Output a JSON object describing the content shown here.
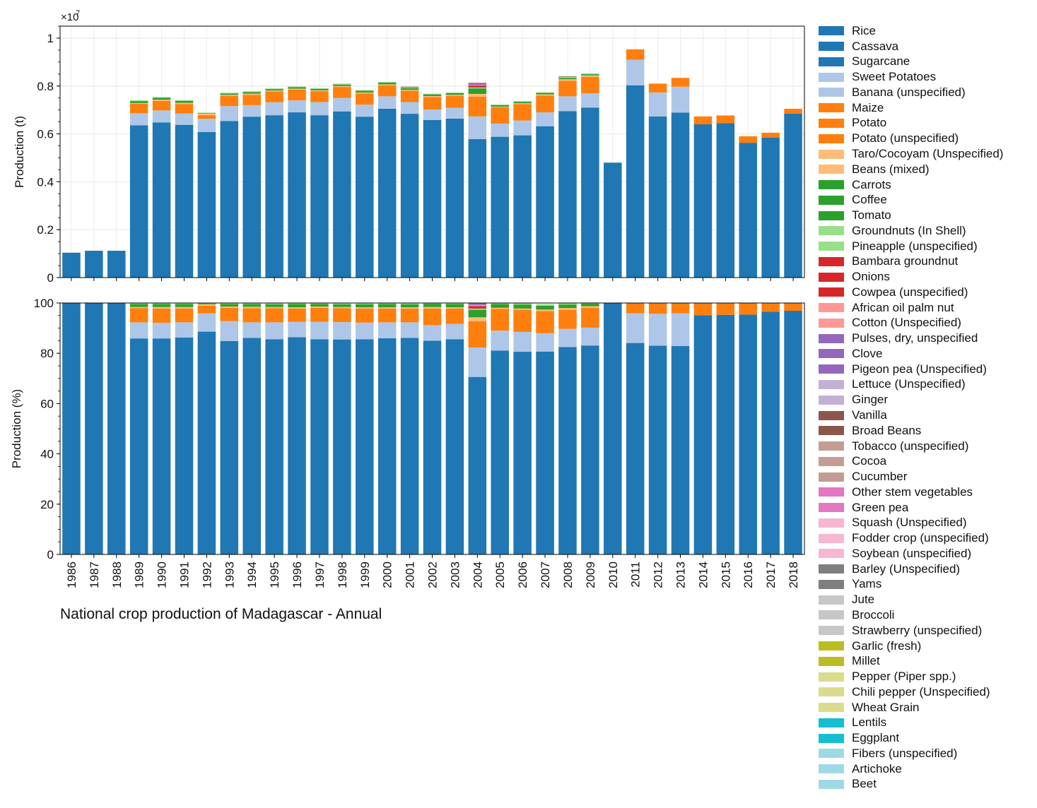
{
  "figure_title": "National crop production of Madagascar - Annual",
  "colors": {
    "Rice": "#1f77b4",
    "Cassava": "#1f77b4",
    "Sugarcane": "#1f77b4",
    "Sweet Potatoes": "#aec7e8",
    "Banana (unspecified)": "#aec7e8",
    "Maize": "#ff7f0e",
    "Potato": "#ff7f0e",
    "Potato (unspecified)": "#ff7f0e",
    "Taro/Cocoyam (Unspecified)": "#ffbb78",
    "Beans (mixed)": "#ffbb78",
    "Carrots": "#2ca02c",
    "Coffee": "#2ca02c",
    "Tomato": "#2ca02c",
    "Groundnuts (In Shell)": "#98df8a",
    "Pineapple (unspecified)": "#98df8a",
    "Bambara groundnut": "#d62728",
    "Onions": "#d62728",
    "Cowpea (unspecified)": "#d62728",
    "African oil palm nut": "#ff9896",
    "Cotton (Unspecified)": "#ff9896",
    "Pulses, dry, unspecified": "#9467bd",
    "Clove": "#9467bd",
    "Pigeon pea (Unspecified)": "#9467bd",
    "Lettuce (Unspecified)": "#c5b0d5",
    "Ginger": "#c5b0d5",
    "Vanilla": "#8c564b",
    "Broad Beans": "#8c564b",
    "Tobacco (unspecified)": "#c49c94",
    "Cocoa": "#c49c94",
    "Cucumber": "#c49c94",
    "Other stem vegetables": "#e377c2",
    "Green pea": "#e377c2",
    "Squash (Unspecified)": "#f7b6d2",
    "Fodder crop (unspecified)": "#f7b6d2",
    "Soybean (unspecified)": "#f7b6d2",
    "Barley (Unspecified)": "#7f7f7f",
    "Yams": "#7f7f7f",
    "Jute": "#c7c7c7",
    "Broccoli": "#c7c7c7",
    "Strawberry (unspecified)": "#c7c7c7",
    "Garlic (fresh)": "#bcbd22",
    "Millet": "#bcbd22",
    "Pepper (Piper spp.)": "#dbdb8d",
    "Chili pepper (Unspecified)": "#dbdb8d",
    "Wheat Grain": "#dbdb8d",
    "Lentils": "#17becf",
    "Eggplant": "#17becf",
    "Fibers (unspecified)": "#9edae5",
    "Artichoke": "#9edae5",
    "Beet": "#9edae5"
  },
  "chart_data": [
    {
      "type": "bar",
      "stacked": true,
      "panel": "top",
      "title": "",
      "xlabel": "",
      "ylabel": "Production (t)",
      "y_multiplier_label": "×10",
      "y_multiplier_exponent": "7",
      "ylim": [
        0,
        1.05
      ],
      "yticks": [
        0,
        0.2,
        0.4,
        0.6,
        0.8,
        1
      ],
      "ytick_labels": [
        "0",
        "0.2",
        "0.4",
        "0.6",
        "0.8",
        "1"
      ],
      "grid": true,
      "categories": [
        "1986",
        "1987",
        "1988",
        "1989",
        "1990",
        "1991",
        "1992",
        "1993",
        "1994",
        "1995",
        "1996",
        "1997",
        "1998",
        "1999",
        "2000",
        "2001",
        "2002",
        "2003",
        "2004",
        "2005",
        "2006",
        "2007",
        "2008",
        "2009",
        "2010",
        "2011",
        "2012",
        "2013",
        "2014",
        "2015",
        "2016",
        "2017",
        "2018"
      ],
      "series": [
        {
          "name": "Rice",
          "values": [
            0.104,
            0.112,
            0.112,
            0.636,
            0.648,
            0.638,
            0.608,
            0.654,
            0.672,
            0.678,
            0.69,
            0.678,
            0.694,
            0.672,
            0.705,
            0.684,
            0.658,
            0.664,
            0.578,
            0.588,
            0.594,
            0.632,
            0.695,
            0.71,
            0.48,
            0.803,
            0.673,
            0.689,
            0.64,
            0.645,
            0.563,
            0.585,
            0.685
          ]
        },
        {
          "name": "Sweet Potatoes",
          "values": [
            0,
            0,
            0,
            0.05,
            0.05,
            0.047,
            0.055,
            0.062,
            0.048,
            0.054,
            0.05,
            0.055,
            0.056,
            0.05,
            0.052,
            0.049,
            0.044,
            0.045,
            0.095,
            0.055,
            0.062,
            0.058,
            0.062,
            0.06,
            0,
            0.107,
            0.1,
            0.108,
            0,
            0,
            0,
            0,
            0
          ]
        },
        {
          "name": "Maize",
          "values": [
            0,
            0,
            0,
            0.04,
            0.04,
            0.04,
            0.015,
            0.043,
            0.043,
            0.045,
            0.045,
            0.045,
            0.046,
            0.047,
            0.046,
            0.047,
            0.052,
            0.05,
            0.082,
            0.068,
            0.068,
            0.07,
            0.065,
            0.068,
            0,
            0.043,
            0.037,
            0.037,
            0.033,
            0.032,
            0.027,
            0.02,
            0.02
          ]
        },
        {
          "name": "Taro/Cocoyam (Unspecified)",
          "values": [
            0,
            0,
            0,
            0.003,
            0.005,
            0.005,
            0.007,
            0.004,
            0.005,
            0.004,
            0.004,
            0.004,
            0.004,
            0.004,
            0.004,
            0.004,
            0.004,
            0.004,
            0.012,
            0.003,
            0.004,
            0.005,
            0.006,
            0.006,
            0,
            0,
            0,
            0,
            0,
            0,
            0,
            0,
            0
          ]
        },
        {
          "name": "Carrots",
          "values": [
            0,
            0,
            0,
            0.008,
            0.008,
            0.008,
            0.002,
            0.006,
            0.007,
            0.006,
            0.006,
            0.006,
            0.006,
            0.007,
            0.007,
            0.007,
            0.007,
            0.007,
            0.023,
            0.006,
            0.006,
            0.006,
            0.006,
            0.005,
            0,
            0,
            0,
            0,
            0,
            0,
            0,
            0,
            0
          ]
        },
        {
          "name": "Groundnuts (In Shell)",
          "values": [
            0,
            0,
            0,
            0.003,
            0.003,
            0.003,
            0.002,
            0.003,
            0.003,
            0.003,
            0.003,
            0.003,
            0.004,
            0.003,
            0.003,
            0.003,
            0.003,
            0.003,
            0.004,
            0.003,
            0.003,
            0.003,
            0.005,
            0.004,
            0,
            0,
            0,
            0,
            0,
            0,
            0,
            0,
            0
          ]
        },
        {
          "name": "Bambara groundnut",
          "values": [
            0,
            0,
            0,
            0,
            0,
            0,
            0,
            0,
            0,
            0,
            0,
            0,
            0,
            0,
            0,
            0,
            0,
            0,
            0.008,
            0,
            0,
            0,
            0,
            0,
            0,
            0,
            0,
            0,
            0,
            0,
            0,
            0,
            0
          ]
        },
        {
          "name": "African oil palm nut",
          "values": [
            0,
            0,
            0,
            0,
            0,
            0,
            0,
            0,
            0,
            0,
            0,
            0,
            0,
            0,
            0,
            0,
            0,
            0,
            0.003,
            0,
            0,
            0,
            0,
            0,
            0,
            0,
            0,
            0,
            0,
            0,
            0,
            0,
            0
          ]
        },
        {
          "name": "Pulses, dry, unspecified",
          "values": [
            0,
            0,
            0,
            0,
            0,
            0,
            0,
            0,
            0,
            0,
            0,
            0,
            0,
            0,
            0,
            0,
            0,
            0,
            0.006,
            0,
            0,
            0,
            0,
            0,
            0,
            0,
            0,
            0,
            0,
            0,
            0,
            0,
            0
          ]
        },
        {
          "name": "Vanilla",
          "values": [
            0,
            0,
            0,
            0,
            0,
            0,
            0,
            0,
            0,
            0,
            0,
            0,
            0,
            0,
            0,
            0.003,
            0,
            0,
            0.002,
            0,
            0,
            0,
            0.002,
            0,
            0,
            0,
            0,
            0,
            0,
            0,
            0,
            0,
            0
          ]
        }
      ]
    },
    {
      "type": "bar",
      "stacked": true,
      "panel": "bottom",
      "title": "",
      "xlabel": "",
      "ylabel": "Production (%)",
      "ylim": [
        0,
        100
      ],
      "yticks": [
        0,
        20,
        40,
        60,
        80,
        100
      ],
      "ytick_labels": [
        "0",
        "20",
        "40",
        "60",
        "80",
        "100"
      ],
      "grid": false,
      "categories": [
        "1986",
        "1987",
        "1988",
        "1989",
        "1990",
        "1991",
        "1992",
        "1993",
        "1994",
        "1995",
        "1996",
        "1997",
        "1998",
        "1999",
        "2000",
        "2001",
        "2002",
        "2003",
        "2004",
        "2005",
        "2006",
        "2007",
        "2008",
        "2009",
        "2010",
        "2011",
        "2012",
        "2013",
        "2014",
        "2015",
        "2016",
        "2017",
        "2018"
      ],
      "series": [
        {
          "name": "Rice",
          "values": [
            100,
            100,
            100,
            85.9,
            85.9,
            86.3,
            88.6,
            84.9,
            86.1,
            85.6,
            86.4,
            85.6,
            85.5,
            85.6,
            86.0,
            86.1,
            85.0,
            85.6,
            70.6,
            81.1,
            80.6,
            80.7,
            82.5,
            83.1,
            100,
            84.1,
            83.0,
            82.9,
            95.1,
            95.3,
            95.4,
            96.5,
            96.9
          ]
        },
        {
          "name": "Sweet Potatoes",
          "values": [
            0,
            0,
            0,
            6.4,
            6.2,
            6.0,
            7.3,
            7.9,
            6.2,
            6.7,
            6.1,
            6.9,
            6.9,
            6.6,
            6.3,
            6.2,
            6.2,
            6.1,
            11.7,
            7.9,
            7.9,
            7.3,
            7.2,
            7.1,
            0,
            11.8,
            12.7,
            13.0,
            0,
            0,
            0,
            0,
            0
          ]
        },
        {
          "name": "Maize",
          "values": [
            0,
            0,
            0,
            5.7,
            5.7,
            5.5,
            3.0,
            5.3,
            5.6,
            5.6,
            5.3,
            5.6,
            5.5,
            5.6,
            5.5,
            5.5,
            6.6,
            6.1,
            10.5,
            8.7,
            8.8,
            8.8,
            7.6,
            7.9,
            0,
            4.1,
            4.3,
            4.1,
            4.9,
            4.7,
            4.6,
            3.5,
            3.1
          ]
        },
        {
          "name": "Taro/Cocoyam (Unspecified)",
          "values": [
            0,
            0,
            0,
            0.4,
            0.6,
            0.6,
            0.6,
            0.5,
            0.6,
            0.5,
            0.5,
            0.5,
            0.5,
            0.5,
            0.5,
            0.5,
            0.6,
            0.5,
            1.5,
            0.4,
            0.5,
            0.6,
            0.7,
            0.6,
            0,
            0,
            0,
            0,
            0,
            0,
            0,
            0,
            0
          ]
        },
        {
          "name": "Carrots",
          "values": [
            0,
            0,
            0,
            1.2,
            1.2,
            1.2,
            0.3,
            1.0,
            1.1,
            1.1,
            1.3,
            1.0,
            1.1,
            1.2,
            1.3,
            1.2,
            1.3,
            1.3,
            3.0,
            1.5,
            1.6,
            1.5,
            1.4,
            1.0,
            0,
            0,
            0,
            0,
            0,
            0,
            0,
            0,
            0
          ]
        },
        {
          "name": "Groundnuts (In Shell)",
          "values": [
            0,
            0,
            0,
            0.4,
            0.4,
            0.4,
            0.3,
            0.4,
            0.4,
            0.5,
            0.4,
            0.4,
            0.5,
            0.5,
            0.4,
            0.4,
            0.3,
            0.4,
            0.5,
            0.4,
            0.6,
            0.6,
            0.6,
            0.5,
            0,
            0,
            0,
            0,
            0,
            0,
            0,
            0,
            0
          ]
        },
        {
          "name": "Bambara groundnut",
          "values": [
            0,
            0,
            0,
            0,
            0,
            0,
            0,
            0,
            0,
            0,
            0,
            0,
            0,
            0,
            0,
            0,
            0,
            0,
            1.0,
            0,
            0,
            0,
            0,
            0,
            0,
            0,
            0,
            0,
            0,
            0,
            0,
            0,
            0
          ]
        },
        {
          "name": "African oil palm nut",
          "values": [
            0,
            0,
            0,
            0,
            0,
            0,
            0,
            0,
            0,
            0,
            0,
            0,
            0,
            0,
            0,
            0,
            0,
            0,
            0.4,
            0,
            0,
            0,
            0,
            0,
            0,
            0,
            0,
            0,
            0,
            0,
            0,
            0,
            0
          ]
        },
        {
          "name": "Pulses, dry, unspecified",
          "values": [
            0,
            0,
            0,
            0,
            0,
            0,
            0,
            0,
            0,
            0,
            0,
            0,
            0,
            0,
            0,
            0,
            0,
            0,
            0.8,
            0,
            0,
            0,
            0,
            0,
            0,
            0,
            0,
            0,
            0,
            0,
            0,
            0,
            0
          ]
        }
      ]
    }
  ],
  "legend": {
    "placement": "right",
    "items": [
      "Rice",
      "Cassava",
      "Sugarcane",
      "Sweet Potatoes",
      "Banana (unspecified)",
      "Maize",
      "Potato",
      "Potato (unspecified)",
      "Taro/Cocoyam (Unspecified)",
      "Beans (mixed)",
      "Carrots",
      "Coffee",
      "Tomato",
      "Groundnuts (In Shell)",
      "Pineapple (unspecified)",
      "Bambara groundnut",
      "Onions",
      "Cowpea (unspecified)",
      "African oil palm nut",
      "Cotton (Unspecified)",
      "Pulses, dry, unspecified",
      "Clove",
      "Pigeon pea (Unspecified)",
      "Lettuce (Unspecified)",
      "Ginger",
      "Vanilla",
      "Broad Beans",
      "Tobacco (unspecified)",
      "Cocoa",
      "Cucumber",
      "Other stem vegetables",
      "Green pea",
      "Squash (Unspecified)",
      "Fodder crop (unspecified)",
      "Soybean (unspecified)",
      "Barley (Unspecified)",
      "Yams",
      "Jute",
      "Broccoli",
      "Strawberry (unspecified)",
      "Garlic (fresh)",
      "Millet",
      "Pepper (Piper spp.)",
      "Chili pepper (Unspecified)",
      "Wheat Grain",
      "Lentils",
      "Eggplant",
      "Fibers (unspecified)",
      "Artichoke",
      "Beet"
    ]
  }
}
